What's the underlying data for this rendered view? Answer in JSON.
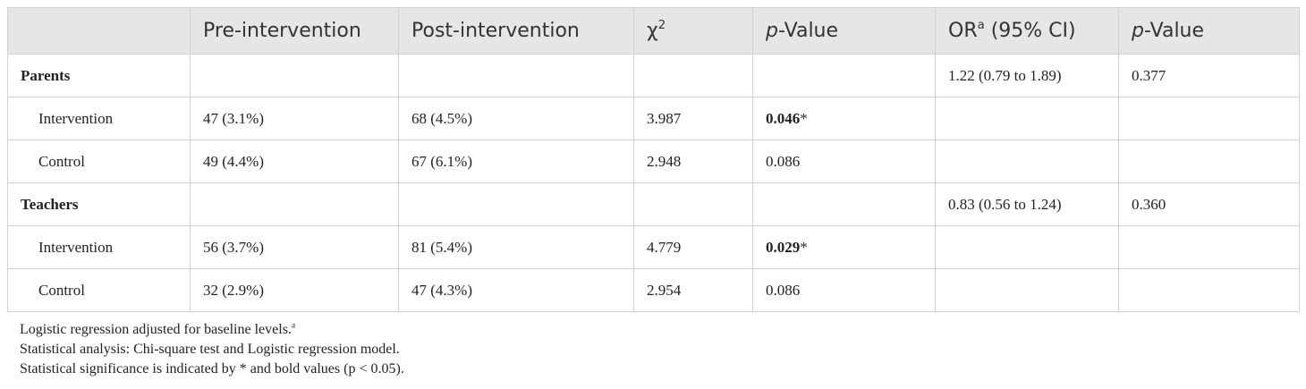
{
  "table": {
    "header": [
      {
        "text": "Pre-intervention"
      },
      {
        "text": "Post-intervention"
      },
      {
        "symbol": "χ",
        "sup": "2"
      },
      {
        "italic": "p",
        "rest": "-Value"
      },
      {
        "main": "OR",
        "sup": "a",
        "rest": " (95% CI)"
      },
      {
        "italic": "p",
        "rest": "-Value"
      }
    ],
    "groups": [
      {
        "name": "Parents",
        "or": "1.22 (0.79 to 1.89)",
        "p": "0.377",
        "rows": [
          {
            "label": "Intervention",
            "pre": "47 (3.1%)",
            "post": "68 (4.5%)",
            "chi": "3.987",
            "p": {
              "value": "0.046",
              "mark": "*"
            }
          },
          {
            "label": "Control",
            "pre": "49 (4.4%)",
            "post": "67 (6.1%)",
            "chi": "2.948",
            "p": "0.086"
          }
        ]
      },
      {
        "name": "Teachers",
        "or": "0.83 (0.56 to 1.24)",
        "p": "0.360",
        "rows": [
          {
            "label": "Intervention",
            "pre": "56 (3.7%)",
            "post": "81 (5.4%)",
            "chi": "4.779",
            "p": {
              "value": "0.029",
              "mark": "*"
            }
          },
          {
            "label": "Control",
            "pre": "32 (2.9%)",
            "post": "47 (4.3%)",
            "chi": "2.954",
            "p": "0.086"
          }
        ]
      }
    ],
    "footnotes": [
      {
        "sup": "a",
        "text": "Logistic regression adjusted for baseline levels."
      },
      {
        "text": "Statistical analysis: Chi-square test and Logistic regression model."
      },
      {
        "text": "Statistical significance is indicated by * and bold values (p < 0.05)."
      }
    ]
  }
}
